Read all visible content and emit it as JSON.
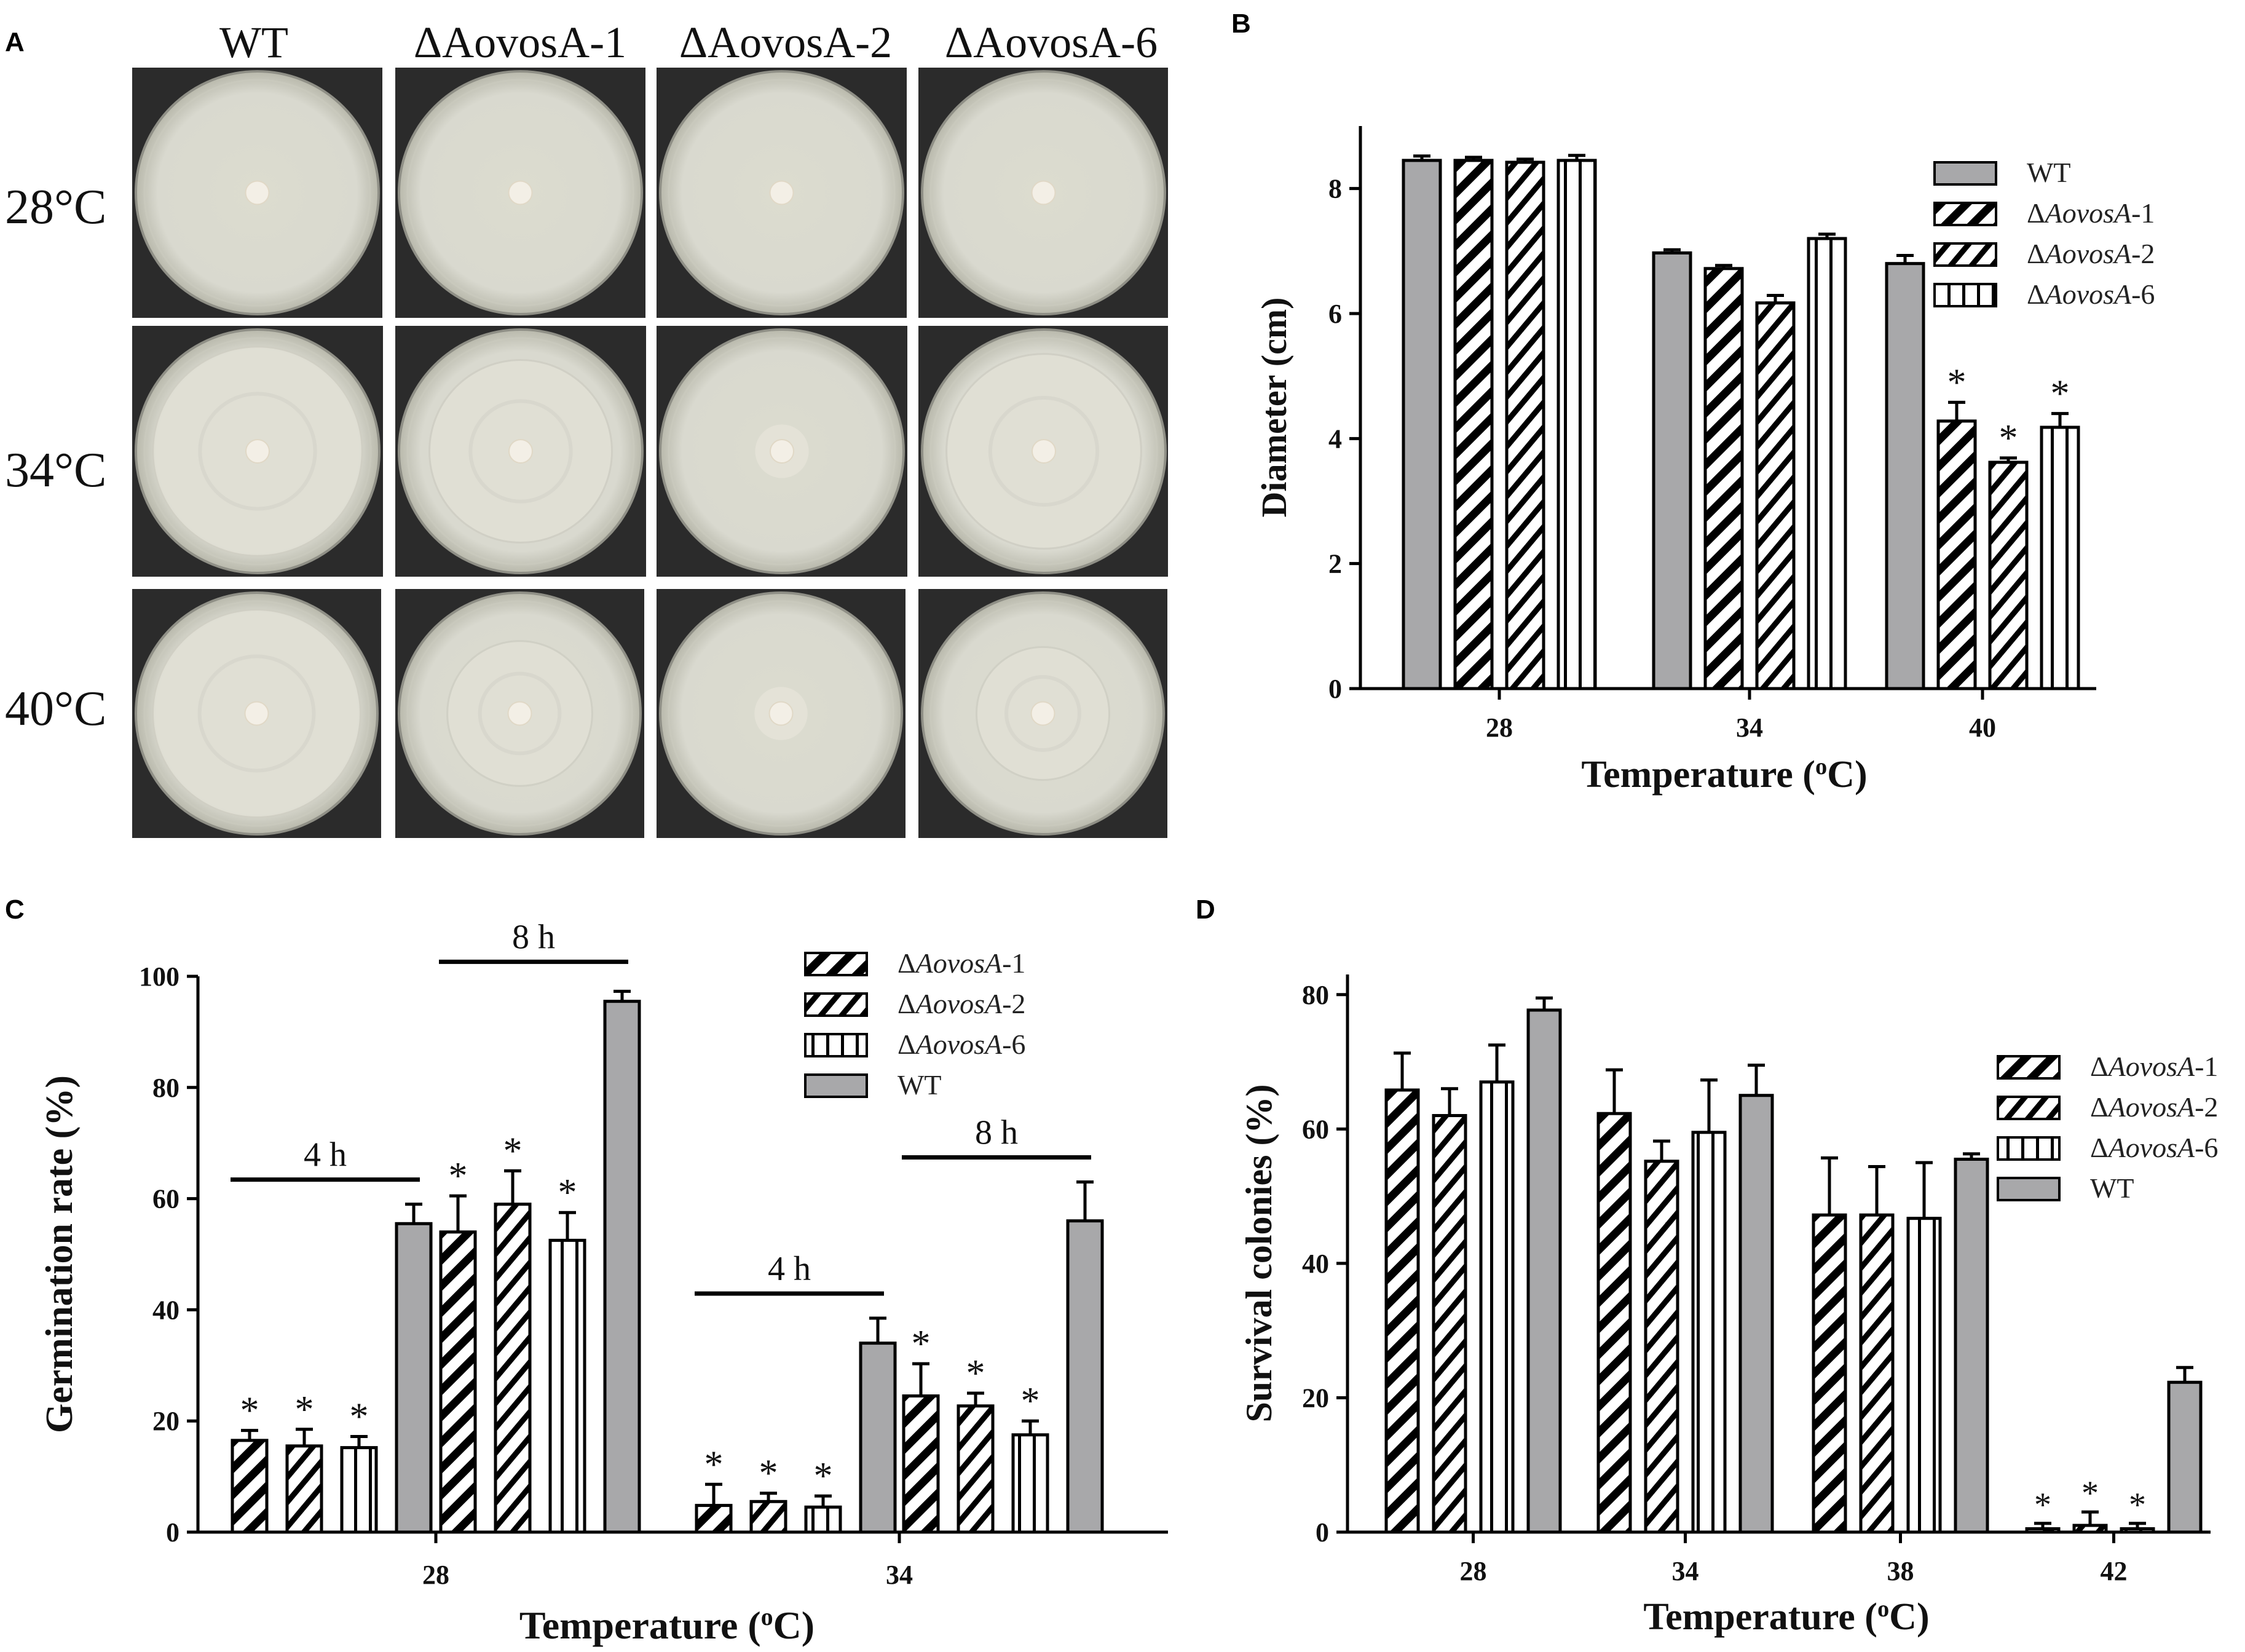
{
  "panel_labels": [
    "A",
    "B",
    "C",
    "D"
  ],
  "panel_a": {
    "strains": [
      "WT",
      "ΔAovosA-1",
      "ΔAovosA-2",
      "ΔAovosA-6"
    ],
    "temperatures": [
      "28°C",
      "34°C",
      "40°C"
    ],
    "colors": {
      "plate_bg": "#2b2b2b",
      "agar": "#d9d9cf",
      "colony": "#f3efe6"
    }
  },
  "chart_data": [
    {
      "panel": "B",
      "type": "bar",
      "categories": [
        "28",
        "34",
        "40"
      ],
      "xlabel": "Temperature (oC)",
      "ylabel": "Diameter (cm)",
      "ylim": [
        0,
        9
      ],
      "yticks": [
        0,
        2,
        4,
        6,
        8
      ],
      "legend_position": "top-right",
      "series": [
        {
          "name": "WT",
          "pattern": "gray",
          "values": [
            8.45,
            6.97,
            6.8
          ],
          "errors": [
            0.07,
            0.05,
            0.13
          ],
          "sig": [
            false,
            false,
            false
          ]
        },
        {
          "name": "ΔAovosA-1",
          "pattern": "diag-wide",
          "values": [
            8.45,
            6.72,
            4.28
          ],
          "errors": [
            0.05,
            0.05,
            0.3
          ],
          "sig": [
            false,
            false,
            true
          ]
        },
        {
          "name": "ΔAovosA-2",
          "pattern": "diag-narrow",
          "values": [
            8.42,
            6.17,
            3.62
          ],
          "errors": [
            0.05,
            0.12,
            0.07
          ],
          "sig": [
            false,
            false,
            true
          ]
        },
        {
          "name": "ΔAovosA-6",
          "pattern": "vert",
          "values": [
            8.45,
            7.2,
            4.18
          ],
          "errors": [
            0.08,
            0.07,
            0.22
          ],
          "sig": [
            false,
            false,
            true
          ]
        }
      ]
    },
    {
      "panel": "C",
      "type": "bar",
      "categories": [
        "28",
        "34"
      ],
      "xlabel": "Temperature (oC)",
      "ylabel": "Germination rate (%)",
      "ylim": [
        0,
        100
      ],
      "yticks": [
        0,
        20,
        40,
        60,
        80,
        100
      ],
      "legend_position": "top-right",
      "legend": [
        "ΔAovosA-1",
        "ΔAovosA-2",
        "ΔAovosA-6",
        "WT"
      ],
      "time_groups": [
        {
          "label": "4 h",
          "temperature": "28",
          "bars": [
            {
              "series": "ΔAovosA-1",
              "value": 16.5,
              "error": 1.8,
              "sig": true
            },
            {
              "series": "ΔAovosA-2",
              "value": 15.5,
              "error": 3,
              "sig": true
            },
            {
              "series": "ΔAovosA-6",
              "value": 15.2,
              "error": 2,
              "sig": true
            },
            {
              "series": "WT",
              "value": 55.5,
              "error": 3.5,
              "sig": false
            }
          ]
        },
        {
          "label": "8 h",
          "temperature": "28",
          "bars": [
            {
              "series": "ΔAovosA-1",
              "value": 54,
              "error": 6.5,
              "sig": true
            },
            {
              "series": "ΔAovosA-2",
              "value": 59,
              "error": 6,
              "sig": true
            },
            {
              "series": "ΔAovosA-6",
              "value": 52.5,
              "error": 5,
              "sig": true
            },
            {
              "series": "WT",
              "value": 95.5,
              "error": 1.8,
              "sig": false
            }
          ]
        },
        {
          "label": "4 h",
          "temperature": "34",
          "bars": [
            {
              "series": "ΔAovosA-1",
              "value": 4.8,
              "error": 3.8,
              "sig": true
            },
            {
              "series": "ΔAovosA-2",
              "value": 5.5,
              "error": 1.5,
              "sig": true
            },
            {
              "series": "ΔAovosA-6",
              "value": 4.5,
              "error": 2,
              "sig": true
            },
            {
              "series": "WT",
              "value": 34,
              "error": 4.5,
              "sig": false
            }
          ]
        },
        {
          "label": "8 h",
          "temperature": "34",
          "bars": [
            {
              "series": "ΔAovosA-1",
              "value": 24.5,
              "error": 5.8,
              "sig": true
            },
            {
              "series": "ΔAovosA-2",
              "value": 22.7,
              "error": 2.3,
              "sig": true
            },
            {
              "series": "ΔAovosA-6",
              "value": 17.5,
              "error": 2.5,
              "sig": true
            },
            {
              "series": "WT",
              "value": 56,
              "error": 7,
              "sig": false
            }
          ]
        }
      ]
    },
    {
      "panel": "D",
      "type": "bar",
      "categories": [
        "28",
        "34",
        "38",
        "42"
      ],
      "xlabel": "Temperature (oC)",
      "ylabel": "Survival colonies (%)",
      "ylim": [
        0,
        83
      ],
      "yticks": [
        0,
        20,
        40,
        60,
        80
      ],
      "legend_position": "top-right",
      "series": [
        {
          "name": "ΔAovosA-1",
          "pattern": "diag-wide",
          "values": [
            65.8,
            62.3,
            47.2,
            0.5
          ],
          "errors": [
            5.5,
            6.5,
            8.5,
            0.8
          ],
          "sig": [
            false,
            false,
            false,
            true
          ]
        },
        {
          "name": "ΔAovosA-2",
          "pattern": "diag-narrow",
          "values": [
            62,
            55.2,
            47.2,
            1
          ],
          "errors": [
            4,
            3,
            7.2,
            2
          ],
          "sig": [
            false,
            false,
            false,
            true
          ]
        },
        {
          "name": "ΔAovosA-6",
          "pattern": "vert",
          "values": [
            67,
            59.5,
            46.7,
            0.5
          ],
          "errors": [
            5.5,
            7.8,
            8.3,
            0.8
          ],
          "sig": [
            false,
            false,
            false,
            true
          ]
        },
        {
          "name": "WT",
          "pattern": "gray",
          "values": [
            77.7,
            65,
            55.5,
            22.3
          ],
          "errors": [
            1.8,
            4.5,
            0.8,
            2.2
          ],
          "sig": [
            false,
            false,
            false,
            false
          ]
        }
      ]
    }
  ],
  "colors": {
    "wt_bar": "#a8a8aa",
    "stroke": "#000000",
    "text": "#1a1a1a"
  }
}
